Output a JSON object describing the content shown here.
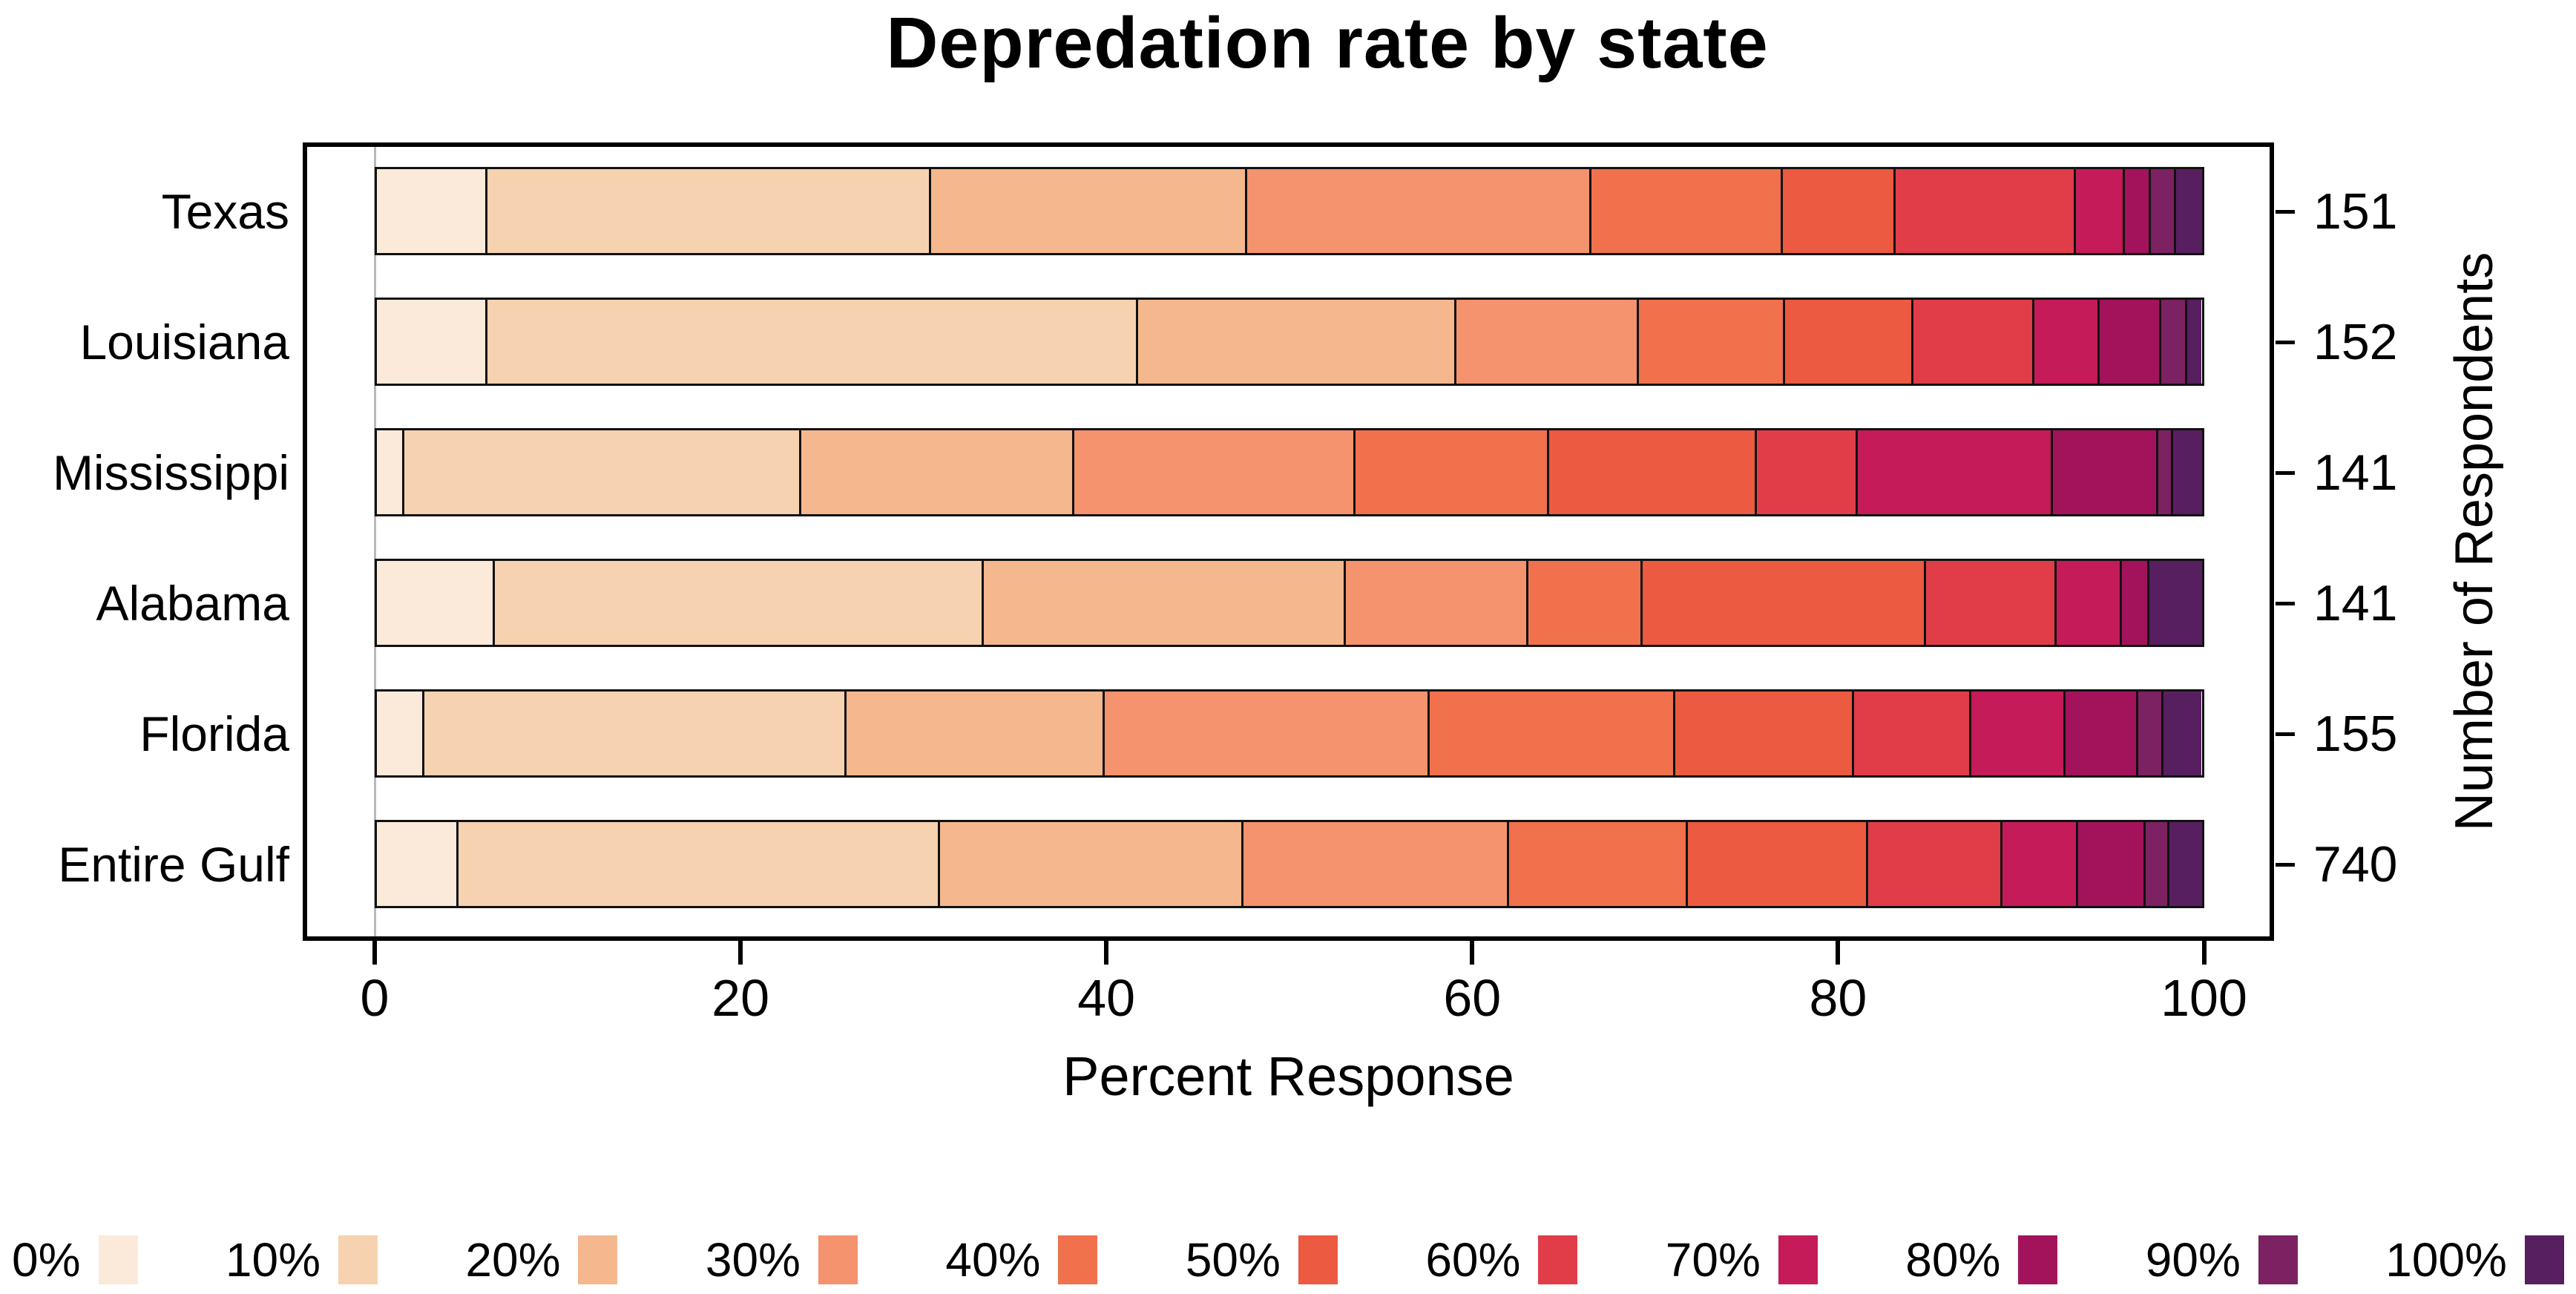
{
  "title": "Depredation rate by state",
  "axes": {
    "x_title": "Percent Response",
    "x_ticks": [
      "0",
      "20",
      "40",
      "60",
      "80",
      "100"
    ],
    "right_title": "Number of Respondents"
  },
  "chart_data": {
    "type": "bar",
    "stacked": true,
    "orientation": "horizontal",
    "title": "Depredation rate by state",
    "xlabel": "Percent Response",
    "right_axis_label": "Number of Respondents",
    "xlim": [
      0,
      100
    ],
    "x_tick_values": [
      0,
      20,
      40,
      60,
      80,
      100
    ],
    "grid": "single light vertical line at x=0",
    "legend_position": "bottom",
    "categories": [
      "Texas",
      "Louisiana",
      "Mississippi",
      "Alabama",
      "Florida",
      "Entire Gulf"
    ],
    "respondents": [
      151,
      152,
      141,
      141,
      155,
      740
    ],
    "series": [
      {
        "name": "0%",
        "color": "#fbead9",
        "values": [
          6.0,
          6.0,
          1.4,
          6.4,
          2.5,
          4.4
        ]
      },
      {
        "name": "10%",
        "color": "#f7d2b0",
        "values": [
          24.5,
          36.0,
          21.9,
          27.0,
          23.3,
          26.6
        ]
      },
      {
        "name": "20%",
        "color": "#f5b78e",
        "values": [
          17.4,
          17.5,
          15.0,
          19.9,
          14.2,
          16.7
        ]
      },
      {
        "name": "30%",
        "color": "#f4936d",
        "values": [
          19.0,
          10.0,
          15.5,
          10.0,
          17.9,
          14.6
        ]
      },
      {
        "name": "40%",
        "color": "#f1714d",
        "values": [
          10.5,
          8.0,
          10.6,
          6.2,
          13.5,
          9.8
        ]
      },
      {
        "name": "50%",
        "color": "#eb5a41",
        "values": [
          6.1,
          7.0,
          11.4,
          15.6,
          9.8,
          9.9
        ]
      },
      {
        "name": "60%",
        "color": "#e03d49",
        "values": [
          9.9,
          6.6,
          5.5,
          7.1,
          6.4,
          7.3
        ]
      },
      {
        "name": "70%",
        "color": "#c51b59",
        "values": [
          2.6,
          3.5,
          10.7,
          3.5,
          5.1,
          4.1
        ]
      },
      {
        "name": "80%",
        "color": "#a3135c",
        "values": [
          1.3,
          3.3,
          5.7,
          1.4,
          3.9,
          3.6
        ]
      },
      {
        "name": "90%",
        "color": "#7c2161",
        "values": [
          1.3,
          1.3,
          0.7,
          0.0,
          1.3,
          1.2
        ]
      },
      {
        "name": "100%",
        "color": "#581f60",
        "values": [
          1.4,
          0.8,
          1.6,
          2.9,
          2.1,
          1.8
        ]
      }
    ]
  }
}
